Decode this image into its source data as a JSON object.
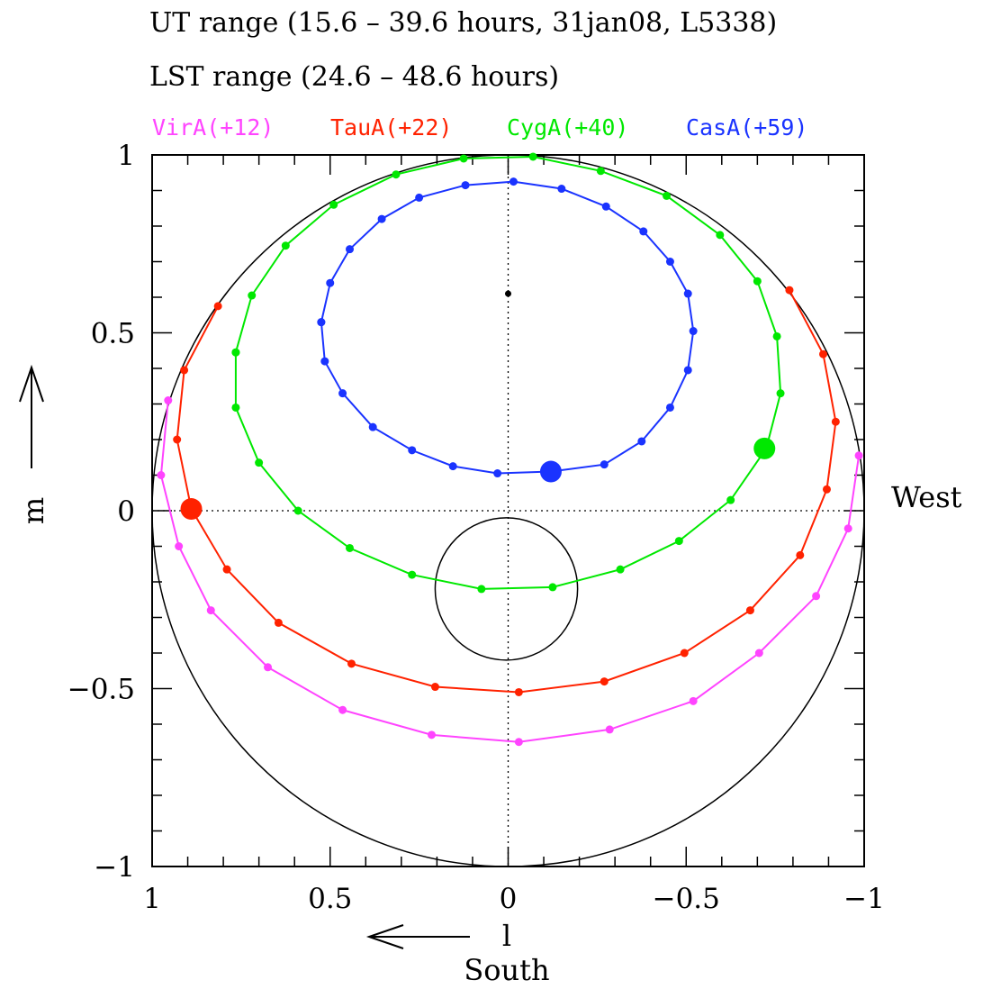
{
  "titles": {
    "ut": "UT range (15.6 – 39.6 hours, 31jan08, L5338)",
    "lst": "LST range (24.6 – 48.6 hours)"
  },
  "chart_data": {
    "type": "line",
    "xlabel": "l",
    "ylabel": "m",
    "x_direction": "South",
    "y_side_label": "West",
    "xlim": [
      1,
      -1
    ],
    "ylim": [
      -1,
      1
    ],
    "x_ticks": [
      {
        "v": 1,
        "label": "1"
      },
      {
        "v": 0.5,
        "label": "0.5"
      },
      {
        "v": 0,
        "label": "0"
      },
      {
        "v": -0.5,
        "label": "−0.5"
      },
      {
        "v": -1,
        "label": "−1"
      }
    ],
    "y_ticks": [
      {
        "v": 1,
        "label": "1"
      },
      {
        "v": 0.5,
        "label": "0.5"
      },
      {
        "v": 0,
        "label": "0"
      },
      {
        "v": -0.5,
        "label": "−0.5"
      },
      {
        "v": -1,
        "label": "−1"
      }
    ],
    "zenith_point": [
      0,
      0.61
    ],
    "beam_circle": {
      "center": [
        0.005,
        -0.22
      ],
      "radius": 0.2
    },
    "horizon_circle": {
      "center": [
        0,
        0
      ],
      "radius": 1
    },
    "series": [
      {
        "name": "VirA(+12)",
        "color": "#ff44ff",
        "points": [
          [
            0.95,
            0.1
          ],
          [
            0.96,
            0.31
          ],
          [
            0.97,
            0.1
          ],
          [
            0.98,
            0.05
          ]
        ],
        "path": [
          [
            0.955,
            0.31
          ],
          [
            0.975,
            0.1
          ],
          [
            0.925,
            -0.1
          ],
          [
            0.835,
            -0.28
          ],
          [
            0.675,
            -0.44
          ],
          [
            0.465,
            -0.56
          ],
          [
            0.215,
            -0.63
          ],
          [
            -0.03,
            -0.65
          ],
          [
            -0.285,
            -0.615
          ],
          [
            -0.52,
            -0.535
          ],
          [
            -0.705,
            -0.4
          ],
          [
            -0.865,
            -0.24
          ],
          [
            -0.955,
            -0.05
          ],
          [
            -0.985,
            0.155
          ]
        ],
        "current": null
      },
      {
        "name": "TauA(+22)",
        "color": "#ff2200",
        "path": [
          [
            0.815,
            0.575
          ],
          [
            0.91,
            0.395
          ],
          [
            0.93,
            0.2
          ],
          [
            0.89,
            0.005
          ],
          [
            0.79,
            -0.165
          ],
          [
            0.645,
            -0.315
          ],
          [
            0.44,
            -0.43
          ],
          [
            0.205,
            -0.495
          ],
          [
            -0.03,
            -0.51
          ],
          [
            -0.27,
            -0.48
          ],
          [
            -0.495,
            -0.4
          ],
          [
            -0.68,
            -0.28
          ],
          [
            -0.82,
            -0.125
          ],
          [
            -0.895,
            0.06
          ],
          [
            -0.92,
            0.25
          ],
          [
            -0.885,
            0.44
          ],
          [
            -0.79,
            0.62
          ]
        ],
        "current": [
          0.89,
          0.005
        ]
      },
      {
        "name": "CygA(+40)",
        "color": "#00e800",
        "path": [
          [
            0.765,
            0.445
          ],
          [
            0.765,
            0.29
          ],
          [
            0.7,
            0.135
          ],
          [
            0.59,
            0.0
          ],
          [
            0.445,
            -0.105
          ],
          [
            0.27,
            -0.18
          ],
          [
            0.075,
            -0.22
          ],
          [
            -0.125,
            -0.215
          ],
          [
            -0.315,
            -0.165
          ],
          [
            -0.48,
            -0.085
          ],
          [
            -0.625,
            0.03
          ],
          [
            -0.725,
            0.175
          ],
          [
            -0.765,
            0.33
          ],
          [
            -0.755,
            0.49
          ],
          [
            -0.7,
            0.645
          ],
          [
            -0.595,
            0.775
          ],
          [
            -0.445,
            0.885
          ],
          [
            -0.26,
            0.955
          ],
          [
            -0.07,
            0.995
          ],
          [
            0.125,
            0.99
          ],
          [
            0.315,
            0.945
          ],
          [
            0.49,
            0.86
          ],
          [
            0.625,
            0.745
          ],
          [
            0.72,
            0.605
          ],
          [
            0.765,
            0.445
          ]
        ],
        "current": [
          -0.72,
          0.175
        ]
      },
      {
        "name": "CasA(+59)",
        "color": "#1a33ff",
        "path": [
          [
            0.525,
            0.53
          ],
          [
            0.5,
            0.64
          ],
          [
            0.445,
            0.735
          ],
          [
            0.355,
            0.82
          ],
          [
            0.25,
            0.88
          ],
          [
            0.12,
            0.915
          ],
          [
            -0.015,
            0.925
          ],
          [
            -0.15,
            0.905
          ],
          [
            -0.275,
            0.855
          ],
          [
            -0.38,
            0.785
          ],
          [
            -0.455,
            0.7
          ],
          [
            -0.505,
            0.61
          ],
          [
            -0.52,
            0.505
          ],
          [
            -0.505,
            0.395
          ],
          [
            -0.455,
            0.29
          ],
          [
            -0.375,
            0.195
          ],
          [
            -0.27,
            0.13
          ],
          [
            -0.12,
            0.11
          ],
          [
            0.03,
            0.105
          ],
          [
            0.155,
            0.125
          ],
          [
            0.27,
            0.17
          ],
          [
            0.38,
            0.235
          ],
          [
            0.465,
            0.33
          ],
          [
            0.515,
            0.42
          ],
          [
            0.525,
            0.53
          ]
        ],
        "current": [
          -0.12,
          0.11
        ]
      }
    ]
  }
}
